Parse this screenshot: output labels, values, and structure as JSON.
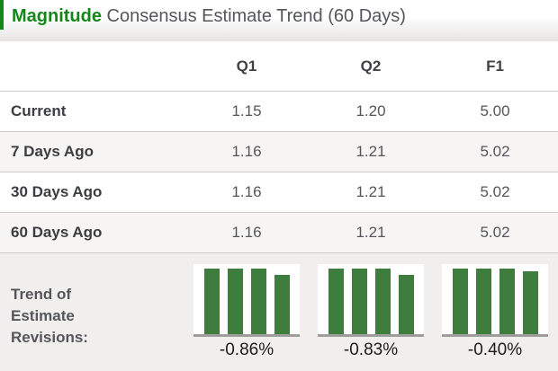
{
  "header": {
    "title_highlight": "Magnitude",
    "title_rest": " Consensus Estimate Trend (60 Days)"
  },
  "table": {
    "columns": [
      "Q1",
      "Q2",
      "F1"
    ],
    "rows": [
      {
        "label": "Current",
        "values": [
          "1.15",
          "1.20",
          "5.00"
        ]
      },
      {
        "label": "7 Days Ago",
        "values": [
          "1.16",
          "1.21",
          "5.02"
        ]
      },
      {
        "label": "30 Days Ago",
        "values": [
          "1.16",
          "1.21",
          "5.02"
        ]
      },
      {
        "label": "60 Days Ago",
        "values": [
          "1.16",
          "1.21",
          "5.02"
        ]
      }
    ]
  },
  "trend_row": {
    "label_lines": [
      "Trend of",
      "Estimate",
      "Revisions:"
    ]
  },
  "chart_data": [
    {
      "type": "bar",
      "title": "Q1 estimate revisions trend",
      "categories": [
        "60 Days Ago",
        "30 Days Ago",
        "7 Days Ago",
        "Current"
      ],
      "values": [
        1.16,
        1.16,
        1.16,
        1.15
      ],
      "bar_heights_pct": [
        100,
        100,
        100,
        90
      ],
      "change_label": "-0.86%",
      "xlabel": "",
      "ylabel": "",
      "grid": false,
      "legend": false
    },
    {
      "type": "bar",
      "title": "Q2 estimate revisions trend",
      "categories": [
        "60 Days Ago",
        "30 Days Ago",
        "7 Days Ago",
        "Current"
      ],
      "values": [
        1.21,
        1.21,
        1.21,
        1.2
      ],
      "bar_heights_pct": [
        100,
        100,
        100,
        91
      ],
      "change_label": "-0.83%",
      "xlabel": "",
      "ylabel": "",
      "grid": false,
      "legend": false
    },
    {
      "type": "bar",
      "title": "F1 estimate revisions trend",
      "categories": [
        "60 Days Ago",
        "30 Days Ago",
        "7 Days Ago",
        "Current"
      ],
      "values": [
        5.02,
        5.02,
        5.02,
        5.0
      ],
      "bar_heights_pct": [
        100,
        100,
        100,
        96
      ],
      "change_label": "-0.40%",
      "xlabel": "",
      "ylabel": "",
      "grid": false,
      "legend": false
    }
  ],
  "colors": {
    "brand_green": "#148719",
    "bar_green": "#3e7d3e",
    "title_gray": "#55565a",
    "label_dark": "#3c3d40",
    "value_gray": "#55565a",
    "separator": "#cccbca",
    "zebra_bg": "#f6f5f4",
    "trend_bg": "#f0efed",
    "baseline_gray": "#9e9d9b",
    "pct_dark": "#1c1c1c"
  }
}
